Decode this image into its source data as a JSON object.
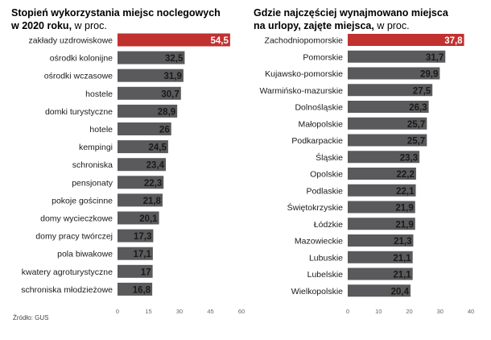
{
  "charts": [
    {
      "title_line1": "Stopień wykorzystania miejsc noclegowych",
      "title_line2_bold": "w 2020 roku,",
      "title_line2_rest": " w proc."
    },
    {
      "title_line1": "Gdzie najczęściej wynajmowano miejsca",
      "title_line2_bold": "na urlopy, zajęte miejsca,",
      "title_line2_rest": " w proc."
    }
  ],
  "source": "Źródło: GUS",
  "colors": {
    "highlight": "#c0312f",
    "bar": "#5a5a5c",
    "tick": "#666666"
  },
  "chart_data": [
    {
      "type": "bar",
      "orientation": "horizontal",
      "title": "Stopień wykorzystania miejsc noclegowych w 2020 roku, w proc.",
      "categories": [
        "zakłady uzdrowiskowe",
        "ośrodki kolonijne",
        "ośrodki wczasowe",
        "hostele",
        "domki turystyczne",
        "hotele",
        "kempingi",
        "schroniska",
        "pensjonaty",
        "pokoje gościnne",
        "domy wycieczkowe",
        "domy pracy twórczej",
        "pola biwakowe",
        "kwatery agroturystyczne",
        "schroniska młodzieżowe"
      ],
      "labels": [
        "54,5",
        "32,5",
        "31,9",
        "30,7",
        "28,9",
        "26",
        "24,5",
        "23,4",
        "22,3",
        "21,8",
        "20,1",
        "17,3",
        "17,1",
        "17",
        "16,8"
      ],
      "values": [
        54.5,
        32.5,
        31.9,
        30.7,
        28.9,
        26,
        24.5,
        23.4,
        22.3,
        21.8,
        20.1,
        17.3,
        17.1,
        17,
        16.8
      ],
      "highlight_index": 0,
      "xlim": [
        0,
        60
      ],
      "xticks": [
        0,
        15,
        30,
        45,
        60
      ],
      "xlabel": "",
      "ylabel": ""
    },
    {
      "type": "bar",
      "orientation": "horizontal",
      "title": "Gdzie najczęściej wynajmowano miejsca na urlopy, zajęte miejsca, w proc.",
      "categories": [
        "Zachodniopomorskie",
        "Pomorskie",
        "Kujawsko-pomorskie",
        "Warmińsko-mazurskie",
        "Dolnośląskie",
        "Małopolskie",
        "Podkarpackie",
        "Śląskie",
        "Opolskie",
        "Podlaskie",
        "Świętokrzyskie",
        "Łódzkie",
        "Mazowieckie",
        "Lubuskie",
        "Lubelskie",
        "Wielkopolskie"
      ],
      "labels": [
        "37,8",
        "31,7",
        "29,9",
        "27,5",
        "26,3",
        "25,7",
        "25,7",
        "23,3",
        "22,2",
        "22,1",
        "21,9",
        "21,9",
        "21,3",
        "21,1",
        "21,1",
        "20,4"
      ],
      "values": [
        37.8,
        31.7,
        29.9,
        27.5,
        26.3,
        25.7,
        25.7,
        23.3,
        22.2,
        22.1,
        21.9,
        21.9,
        21.3,
        21.1,
        21.1,
        20.4
      ],
      "highlight_index": 0,
      "xlim": [
        0,
        40
      ],
      "xticks": [
        0,
        10,
        20,
        30,
        40
      ],
      "xlabel": "",
      "ylabel": ""
    }
  ]
}
